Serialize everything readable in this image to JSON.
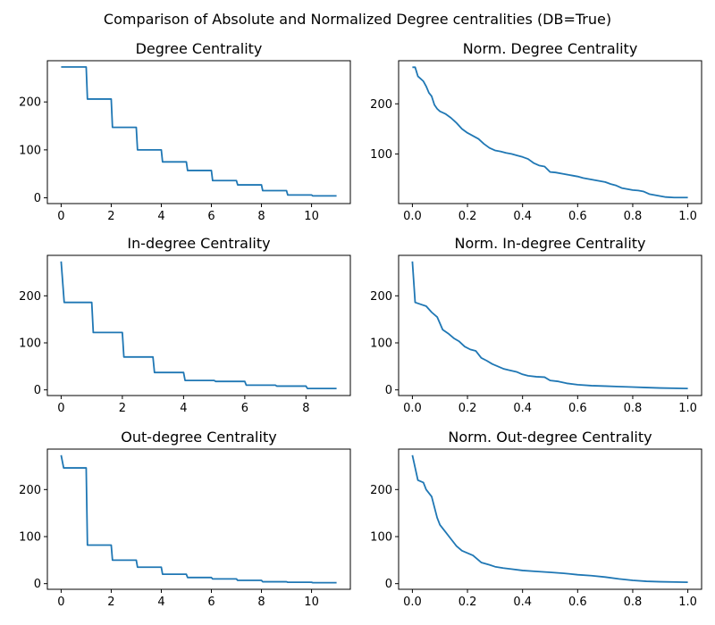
{
  "figure": {
    "suptitle": "Comparison of Absolute and Normalized Degree centralities (DB=True)",
    "line_color": "#1f77b4"
  },
  "chart_data": [
    {
      "type": "line",
      "title": "Degree Centrality",
      "xlabel": "",
      "ylabel": "",
      "xlim": [
        -0.55,
        11.55
      ],
      "ylim": [
        -12,
        286
      ],
      "xticks": [
        0,
        2,
        4,
        6,
        8,
        10
      ],
      "yticks": [
        0,
        100,
        200
      ],
      "grid": false,
      "series": [
        {
          "x": [
            0,
            1,
            1.05,
            2,
            2.05,
            3,
            3.05,
            4,
            4.05,
            5,
            5.05,
            6,
            6.05,
            7,
            7.05,
            8,
            8.05,
            9,
            9.05,
            10,
            10.05,
            11
          ],
          "y": [
            273,
            273,
            206,
            206,
            147,
            147,
            100,
            100,
            75,
            75,
            57,
            57,
            36,
            36,
            27,
            27,
            15,
            15,
            6,
            6,
            4,
            4
          ]
        }
      ]
    },
    {
      "type": "line",
      "title": "Norm. Degree Centrality",
      "xlabel": "",
      "ylabel": "",
      "xlim": [
        -0.05,
        1.05
      ],
      "ylim": [
        1,
        286
      ],
      "xticks": [
        0.0,
        0.2,
        0.4,
        0.6,
        0.8,
        1.0
      ],
      "yticks": [
        100,
        200
      ],
      "grid": false,
      "series": [
        {
          "x": [
            0.0,
            0.01,
            0.02,
            0.03,
            0.04,
            0.05,
            0.06,
            0.07,
            0.08,
            0.09,
            0.1,
            0.12,
            0.14,
            0.16,
            0.18,
            0.2,
            0.22,
            0.24,
            0.26,
            0.28,
            0.3,
            0.32,
            0.34,
            0.36,
            0.38,
            0.4,
            0.42,
            0.44,
            0.46,
            0.48,
            0.5,
            0.52,
            0.55,
            0.58,
            0.6,
            0.62,
            0.64,
            0.66,
            0.68,
            0.7,
            0.72,
            0.74,
            0.76,
            0.78,
            0.8,
            0.82,
            0.84,
            0.86,
            0.88,
            0.9,
            0.92,
            0.95,
            1.0
          ],
          "y": [
            273,
            273,
            255,
            250,
            245,
            235,
            222,
            215,
            198,
            190,
            185,
            180,
            172,
            162,
            150,
            142,
            136,
            130,
            120,
            112,
            107,
            105,
            102,
            100,
            97,
            94,
            90,
            82,
            77,
            75,
            64,
            63,
            60,
            57,
            55,
            52,
            50,
            48,
            46,
            44,
            40,
            37,
            32,
            30,
            28,
            27,
            25,
            20,
            18,
            16,
            14,
            13,
            13
          ]
        }
      ]
    },
    {
      "type": "line",
      "title": "In-degree Centrality",
      "xlabel": "",
      "ylabel": "",
      "xlim": [
        -0.45,
        9.45
      ],
      "ylim": [
        -12,
        286
      ],
      "xticks": [
        0,
        2,
        4,
        6,
        8
      ],
      "yticks": [
        0,
        100,
        200
      ],
      "grid": false,
      "series": [
        {
          "x": [
            0,
            0.1,
            1,
            1.05,
            2,
            2.05,
            3,
            3.05,
            4,
            4.05,
            5,
            5.05,
            6,
            6.05,
            7,
            7.05,
            8,
            8.05,
            9
          ],
          "y": [
            273,
            186,
            186,
            122,
            122,
            70,
            70,
            37,
            37,
            20,
            20,
            18,
            18,
            10,
            10,
            8,
            8,
            3,
            3
          ]
        }
      ]
    },
    {
      "type": "line",
      "title": "Norm. In-degree Centrality",
      "xlabel": "",
      "ylabel": "",
      "xlim": [
        -0.05,
        1.05
      ],
      "ylim": [
        -12,
        286
      ],
      "xticks": [
        0.0,
        0.2,
        0.4,
        0.6,
        0.8,
        1.0
      ],
      "yticks": [
        0,
        100,
        200
      ],
      "grid": false,
      "series": [
        {
          "x": [
            0.0,
            0.01,
            0.03,
            0.05,
            0.07,
            0.09,
            0.11,
            0.13,
            0.15,
            0.17,
            0.19,
            0.21,
            0.23,
            0.25,
            0.27,
            0.29,
            0.31,
            0.33,
            0.35,
            0.38,
            0.4,
            0.42,
            0.45,
            0.48,
            0.5,
            0.53,
            0.56,
            0.6,
            0.65,
            0.7,
            0.75,
            0.8,
            0.85,
            0.9,
            1.0
          ],
          "y": [
            273,
            186,
            182,
            178,
            165,
            155,
            128,
            120,
            110,
            103,
            92,
            86,
            83,
            68,
            62,
            55,
            50,
            45,
            42,
            38,
            33,
            30,
            28,
            27,
            20,
            18,
            14,
            11,
            9,
            8,
            7,
            6,
            5,
            4,
            3
          ]
        }
      ]
    },
    {
      "type": "line",
      "title": "Out-degree Centrality",
      "xlabel": "",
      "ylabel": "",
      "xlim": [
        -0.55,
        11.55
      ],
      "ylim": [
        -12,
        286
      ],
      "xticks": [
        0,
        2,
        4,
        6,
        8,
        10
      ],
      "yticks": [
        0,
        100,
        200
      ],
      "grid": false,
      "series": [
        {
          "x": [
            0,
            0.1,
            1,
            1.05,
            2,
            2.05,
            3,
            3.05,
            4,
            4.05,
            5,
            5.05,
            6,
            6.05,
            7,
            7.05,
            8,
            8.05,
            9,
            9.05,
            10,
            10.05,
            11
          ],
          "y": [
            273,
            246,
            246,
            82,
            82,
            50,
            50,
            35,
            35,
            20,
            20,
            13,
            13,
            10,
            10,
            7,
            7,
            4,
            4,
            3,
            3,
            2,
            2
          ]
        }
      ]
    },
    {
      "type": "line",
      "title": "Norm. Out-degree Centrality",
      "xlabel": "",
      "ylabel": "",
      "xlim": [
        -0.05,
        1.05
      ],
      "ylim": [
        -12,
        286
      ],
      "xticks": [
        0.0,
        0.2,
        0.4,
        0.6,
        0.8,
        1.0
      ],
      "yticks": [
        0,
        100,
        200
      ],
      "grid": false,
      "series": [
        {
          "x": [
            0.0,
            0.02,
            0.04,
            0.05,
            0.07,
            0.09,
            0.1,
            0.12,
            0.14,
            0.16,
            0.18,
            0.2,
            0.22,
            0.25,
            0.28,
            0.3,
            0.33,
            0.36,
            0.4,
            0.45,
            0.5,
            0.55,
            0.6,
            0.65,
            0.7,
            0.75,
            0.8,
            0.85,
            0.9,
            1.0
          ],
          "y": [
            273,
            220,
            215,
            200,
            185,
            140,
            125,
            110,
            95,
            80,
            70,
            65,
            60,
            45,
            40,
            36,
            33,
            31,
            28,
            26,
            24,
            22,
            19,
            17,
            14,
            10,
            7,
            5,
            4,
            3
          ]
        }
      ]
    }
  ]
}
